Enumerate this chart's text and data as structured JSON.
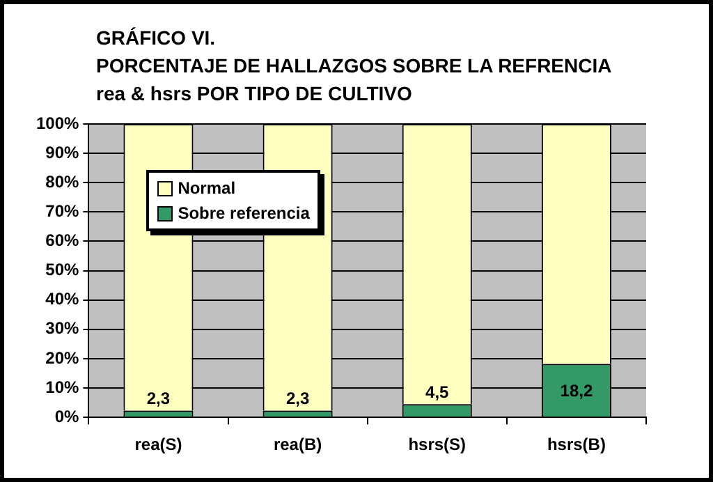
{
  "chart_data": {
    "type": "bar",
    "title": "GRÁFICO VI.\nPORCENTAJE DE HALLAZGOS SOBRE LA REFRENCIA\nrea & hsrs POR TIPO DE CULTIVO",
    "categories": [
      "rea(S)",
      "rea(B)",
      "hsrs(S)",
      "hsrs(B)"
    ],
    "stacked": true,
    "series": [
      {
        "name": "Sobre referencia",
        "color": "#339966",
        "values": [
          2.3,
          2.3,
          4.5,
          18.2
        ],
        "value_labels": [
          "2,3",
          "2,3",
          "4,5",
          "18,2"
        ]
      },
      {
        "name": "Normal",
        "color": "#ffffc0",
        "values": [
          97.7,
          97.7,
          95.5,
          81.8
        ]
      }
    ],
    "ylim": [
      0,
      100
    ],
    "yticks": [
      {
        "value": 0,
        "label": "0%"
      },
      {
        "value": 10,
        "label": "10%"
      },
      {
        "value": 20,
        "label": "20%"
      },
      {
        "value": 30,
        "label": "30%"
      },
      {
        "value": 40,
        "label": "40%"
      },
      {
        "value": 50,
        "label": "50%"
      },
      {
        "value": 60,
        "label": "60%"
      },
      {
        "value": 70,
        "label": "70%"
      },
      {
        "value": 80,
        "label": "80%"
      },
      {
        "value": 90,
        "label": "90%"
      },
      {
        "value": 100,
        "label": "100%"
      }
    ],
    "grid": "y",
    "legend": "top left"
  }
}
